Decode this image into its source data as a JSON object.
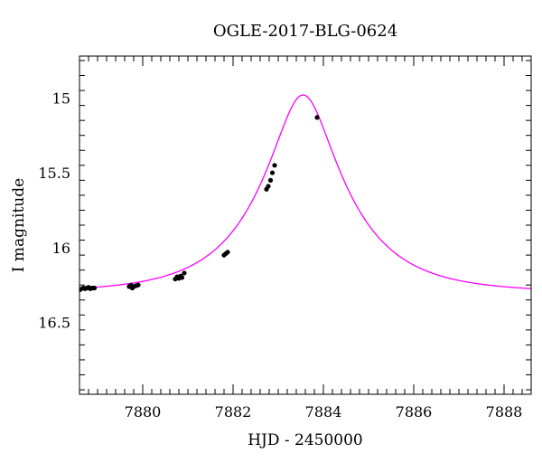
{
  "chart_data": {
    "type": "scatter",
    "title": "OGLE-2017-BLG-0624",
    "xlabel": "HJD - 2450000",
    "ylabel": "I magnitude",
    "xlim": [
      7878.6,
      7888.6
    ],
    "ylim": [
      16.98,
      14.72
    ],
    "y_inverted": true,
    "x_ticks": [
      7880,
      7882,
      7884,
      7886,
      7888
    ],
    "y_ticks": [
      15,
      15.5,
      16,
      16.5
    ],
    "x_tick_labels": [
      "7880",
      "7882",
      "7884",
      "7886",
      "7888"
    ],
    "y_tick_labels": [
      "15",
      "15.5",
      "16",
      "16.5"
    ],
    "grid": false,
    "series": [
      {
        "kind": "points",
        "color": "#000000",
        "points": [
          [
            7878.62,
            16.28
          ],
          [
            7878.68,
            16.27
          ],
          [
            7878.72,
            16.275
          ],
          [
            7878.76,
            16.27
          ],
          [
            7878.8,
            16.265
          ],
          [
            7878.84,
            16.275
          ],
          [
            7878.88,
            16.27
          ],
          [
            7878.93,
            16.27
          ],
          [
            7879.7,
            16.26
          ],
          [
            7879.74,
            16.25
          ],
          [
            7879.77,
            16.27
          ],
          [
            7879.8,
            16.26
          ],
          [
            7879.85,
            16.255
          ],
          [
            7879.9,
            16.25
          ],
          [
            7880.72,
            16.21
          ],
          [
            7880.76,
            16.195
          ],
          [
            7880.8,
            16.205
          ],
          [
            7880.84,
            16.19
          ],
          [
            7880.87,
            16.2
          ],
          [
            7880.92,
            16.17
          ],
          [
            7881.8,
            16.05
          ],
          [
            7881.84,
            16.04
          ],
          [
            7881.88,
            16.03
          ],
          [
            7882.74,
            15.61
          ],
          [
            7882.78,
            15.59
          ],
          [
            7882.83,
            15.55
          ],
          [
            7882.87,
            15.5
          ],
          [
            7882.92,
            15.45
          ],
          [
            7883.86,
            15.13
          ]
        ]
      },
      {
        "kind": "model",
        "color": "#ff00ff",
        "peak_time": 7883.55,
        "peak_mag": 14.98,
        "baseline_mag": 16.3,
        "u0": 0.33,
        "tE": 1.84
      }
    ]
  }
}
